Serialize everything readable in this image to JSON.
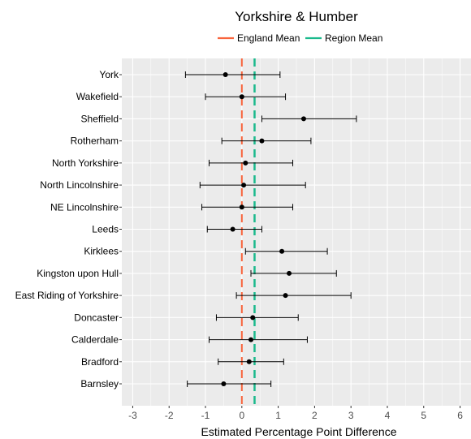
{
  "chart_data": {
    "type": "errorbar",
    "title": "Yorkshire & Humber",
    "xlabel": "Estimated Percentage Point Difference",
    "ylabel": "",
    "xlim": [
      -3.3,
      6.3
    ],
    "xticks": [
      "-3",
      "-2",
      "-1",
      "0",
      "1",
      "2",
      "3",
      "4",
      "5",
      "6"
    ],
    "grid": true,
    "legend_position": "top",
    "legend": [
      {
        "label": "England Mean",
        "color": "#f8643c"
      },
      {
        "label": "Region Mean",
        "color": "#1ab98c"
      }
    ],
    "reference_lines": {
      "england_mean": 0,
      "region_mean": 0.35
    },
    "categories": [
      "York",
      "Wakefield",
      "Sheffield",
      "Rotherham",
      "North Yorkshire",
      "North Lincolnshire",
      "NE Lincolnshire",
      "Leeds",
      "Kirklees",
      "Kingston upon Hull",
      "East Riding of Yorkshire",
      "Doncaster",
      "Calderdale",
      "Bradford",
      "Barnsley"
    ],
    "points": [
      {
        "estimate": -0.45,
        "lower": -1.55,
        "upper": 1.05
      },
      {
        "estimate": 0.0,
        "lower": -1.0,
        "upper": 1.2
      },
      {
        "estimate": 1.7,
        "lower": 0.55,
        "upper": 3.15
      },
      {
        "estimate": 0.55,
        "lower": -0.55,
        "upper": 1.9
      },
      {
        "estimate": 0.1,
        "lower": -0.9,
        "upper": 1.4
      },
      {
        "estimate": 0.05,
        "lower": -1.15,
        "upper": 1.75
      },
      {
        "estimate": 0.0,
        "lower": -1.1,
        "upper": 1.4
      },
      {
        "estimate": -0.25,
        "lower": -0.95,
        "upper": 0.55
      },
      {
        "estimate": 1.1,
        "lower": 0.1,
        "upper": 2.35
      },
      {
        "estimate": 1.3,
        "lower": 0.25,
        "upper": 2.6
      },
      {
        "estimate": 1.2,
        "lower": -0.15,
        "upper": 3.0
      },
      {
        "estimate": 0.3,
        "lower": -0.7,
        "upper": 1.55
      },
      {
        "estimate": 0.25,
        "lower": -0.9,
        "upper": 1.8
      },
      {
        "estimate": 0.2,
        "lower": -0.65,
        "upper": 1.15
      },
      {
        "estimate": -0.5,
        "lower": -1.5,
        "upper": 0.8
      }
    ]
  }
}
